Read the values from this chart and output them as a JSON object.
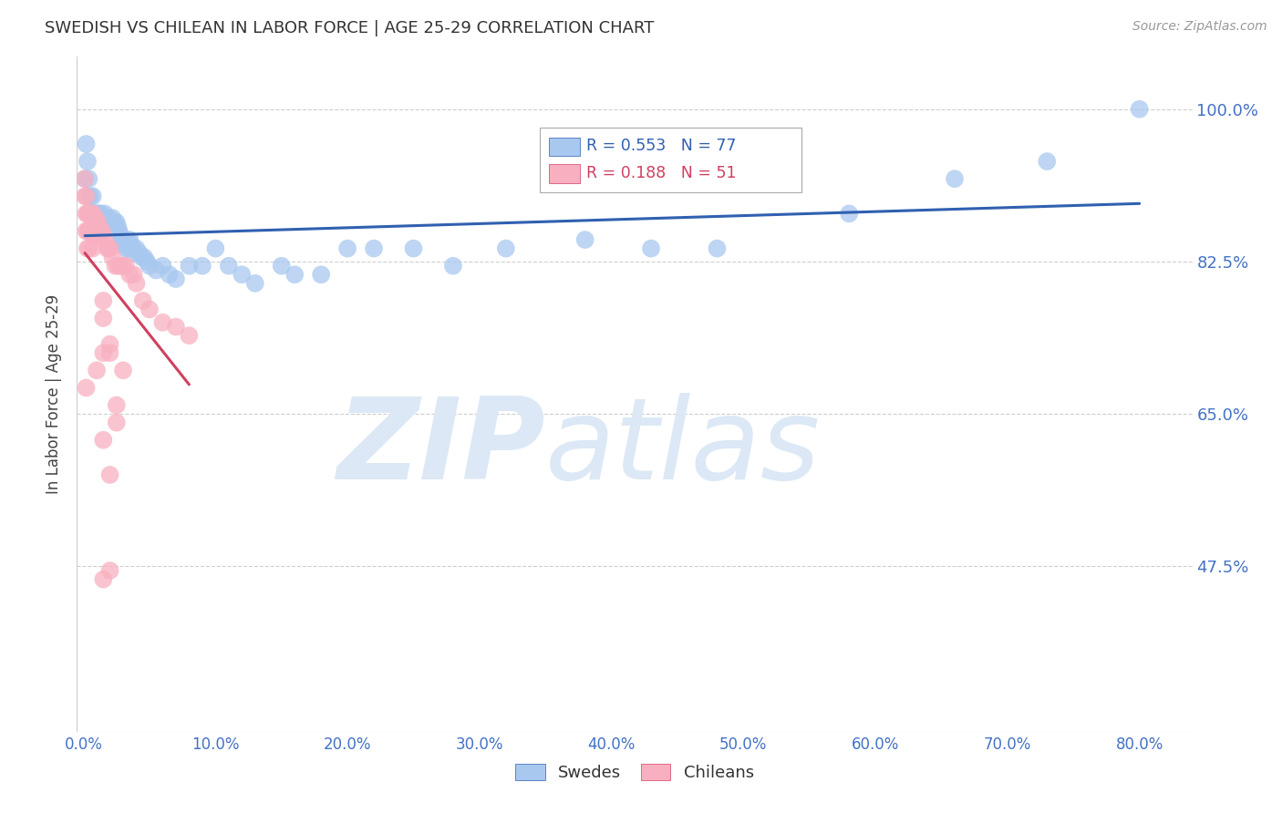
{
  "title": "SWEDISH VS CHILEAN IN LABOR FORCE | AGE 25-29 CORRELATION CHART",
  "source": "Source: ZipAtlas.com",
  "ylabel": "In Labor Force | Age 25-29",
  "legend_labels": [
    "Swedes",
    "Chileans"
  ],
  "legend_R": [
    0.553,
    0.188
  ],
  "legend_N": [
    77,
    51
  ],
  "blue_color": "#A8C8F0",
  "pink_color": "#F8B0C0",
  "blue_line_color": "#3060B0",
  "pink_line_color": "#D04060",
  "ytick_labels": [
    "47.5%",
    "65.0%",
    "82.5%",
    "100.0%"
  ],
  "ytick_values": [
    0.475,
    0.65,
    0.825,
    1.0
  ],
  "xtick_labels": [
    "0.0%",
    "10.0%",
    "20.0%",
    "30.0%",
    "40.0%",
    "50.0%",
    "60.0%",
    "70.0%",
    "80.0%"
  ],
  "xtick_values": [
    0.0,
    0.1,
    0.2,
    0.3,
    0.4,
    0.5,
    0.6,
    0.7,
    0.8
  ],
  "xlim": [
    -0.005,
    0.84
  ],
  "ylim": [
    0.285,
    1.06
  ],
  "axis_color": "#4472C4",
  "watermark_text": "ZIPatlas",
  "watermark_color": "#DCE8F5",
  "grid_color": "#BBBBBB",
  "swedes_x": [
    0.001,
    0.002,
    0.003,
    0.003,
    0.004,
    0.004,
    0.005,
    0.005,
    0.006,
    0.006,
    0.007,
    0.007,
    0.008,
    0.008,
    0.009,
    0.009,
    0.01,
    0.01,
    0.011,
    0.011,
    0.012,
    0.012,
    0.013,
    0.014,
    0.015,
    0.016,
    0.017,
    0.018,
    0.019,
    0.02,
    0.022,
    0.023,
    0.025,
    0.026,
    0.027,
    0.028,
    0.029,
    0.03,
    0.031,
    0.032,
    0.033,
    0.034,
    0.035,
    0.036,
    0.037,
    0.038,
    0.04,
    0.042,
    0.044,
    0.046,
    0.048,
    0.05,
    0.055,
    0.06,
    0.065,
    0.07,
    0.08,
    0.09,
    0.1,
    0.11,
    0.12,
    0.13,
    0.15,
    0.16,
    0.18,
    0.2,
    0.22,
    0.25,
    0.28,
    0.32,
    0.38,
    0.43,
    0.48,
    0.58,
    0.66,
    0.73,
    0.8
  ],
  "swedes_y": [
    0.92,
    0.96,
    0.94,
    0.9,
    0.92,
    0.88,
    0.9,
    0.86,
    0.88,
    0.86,
    0.88,
    0.9,
    0.88,
    0.86,
    0.88,
    0.86,
    0.88,
    0.86,
    0.88,
    0.86,
    0.88,
    0.86,
    0.88,
    0.875,
    0.87,
    0.88,
    0.875,
    0.87,
    0.875,
    0.87,
    0.875,
    0.87,
    0.87,
    0.865,
    0.86,
    0.855,
    0.85,
    0.85,
    0.845,
    0.84,
    0.845,
    0.84,
    0.85,
    0.845,
    0.84,
    0.835,
    0.84,
    0.835,
    0.83,
    0.83,
    0.825,
    0.82,
    0.815,
    0.82,
    0.81,
    0.805,
    0.82,
    0.82,
    0.84,
    0.82,
    0.81,
    0.8,
    0.82,
    0.81,
    0.81,
    0.84,
    0.84,
    0.84,
    0.82,
    0.84,
    0.85,
    0.84,
    0.84,
    0.88,
    0.92,
    0.94,
    1.0
  ],
  "chileans_x": [
    0.001,
    0.001,
    0.002,
    0.002,
    0.002,
    0.003,
    0.003,
    0.003,
    0.004,
    0.004,
    0.004,
    0.005,
    0.005,
    0.006,
    0.006,
    0.007,
    0.007,
    0.007,
    0.008,
    0.008,
    0.009,
    0.009,
    0.01,
    0.01,
    0.011,
    0.011,
    0.012,
    0.013,
    0.014,
    0.015,
    0.016,
    0.018,
    0.019,
    0.02,
    0.022,
    0.024,
    0.026,
    0.028,
    0.03,
    0.032,
    0.035,
    0.038,
    0.04,
    0.045,
    0.05,
    0.06,
    0.07,
    0.08,
    0.02,
    0.015,
    0.01
  ],
  "chileans_y": [
    0.92,
    0.9,
    0.9,
    0.88,
    0.86,
    0.88,
    0.86,
    0.84,
    0.88,
    0.86,
    0.84,
    0.88,
    0.86,
    0.88,
    0.86,
    0.88,
    0.86,
    0.84,
    0.875,
    0.86,
    0.875,
    0.855,
    0.87,
    0.855,
    0.87,
    0.855,
    0.86,
    0.86,
    0.86,
    0.855,
    0.85,
    0.84,
    0.84,
    0.84,
    0.83,
    0.82,
    0.82,
    0.82,
    0.82,
    0.82,
    0.81,
    0.81,
    0.8,
    0.78,
    0.77,
    0.755,
    0.75,
    0.74,
    0.73,
    0.72,
    0.7
  ],
  "chileans_outliers_x": [
    0.015,
    0.015,
    0.02,
    0.03,
    0.002,
    0.025,
    0.025,
    0.015,
    0.02,
    0.02,
    0.015
  ],
  "chileans_outliers_y": [
    0.78,
    0.76,
    0.72,
    0.7,
    0.68,
    0.66,
    0.64,
    0.62,
    0.58,
    0.47,
    0.46
  ]
}
